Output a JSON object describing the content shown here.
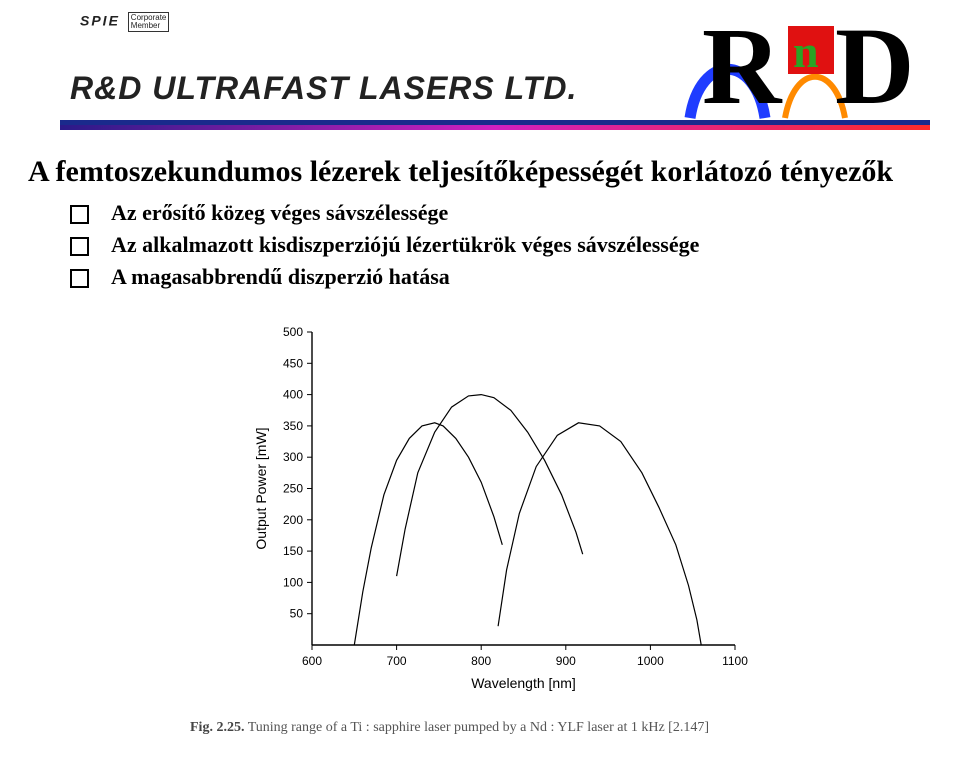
{
  "header": {
    "spie_label": "SPIE",
    "spie_box_line1": "Corporate",
    "spie_box_line2": "Member",
    "company_name": "R&D ULTRAFAST LASERS LTD.",
    "logo": {
      "letters": [
        "R",
        "n",
        "D"
      ],
      "r_color": "#000000",
      "n_bg": "#e01111",
      "n_fg": "#2aa324",
      "d_color": "#000000",
      "curve1_color": "#1f3cff",
      "curve2_color": "#ff8a00"
    },
    "divider": {
      "top_color": "#1a2a8c",
      "gradient_from": "#2a1a88",
      "gradient_mid": "#d020c0",
      "gradient_to": "#ff2a2a"
    }
  },
  "title": "A femtoszekundumos lézerek teljesítőképességét korlátozó tényezők",
  "bullets": [
    "Az erősítő közeg véges sávszélessége",
    "Az alkalmazott kisdiszperziójú lézertükrök véges sávszélessége",
    "A magasabbrendű diszperzió hatása"
  ],
  "chart": {
    "type": "line",
    "ylabel": "Output  Power  [mW]",
    "xlabel": "Wavelength  [nm]",
    "label_fontsize": 14,
    "tick_fontsize": 12,
    "xlim": [
      600,
      1100
    ],
    "xtick_step": 100,
    "xticks": [
      600,
      700,
      800,
      900,
      1000,
      1100
    ],
    "ylim": [
      0,
      500
    ],
    "ytick_step": 50,
    "yticks": [
      50,
      100,
      150,
      200,
      250,
      300,
      350,
      400,
      450,
      500
    ],
    "line_color": "#000000",
    "line_width": 1.2,
    "background_color": "#ffffff",
    "axis_color": "#000000",
    "series": [
      {
        "name": "curve1",
        "points": [
          [
            650,
            0
          ],
          [
            660,
            85
          ],
          [
            670,
            155
          ],
          [
            685,
            240
          ],
          [
            700,
            295
          ],
          [
            715,
            330
          ],
          [
            730,
            350
          ],
          [
            745,
            355
          ],
          [
            755,
            350
          ],
          [
            770,
            330
          ],
          [
            785,
            300
          ],
          [
            800,
            260
          ],
          [
            815,
            205
          ],
          [
            825,
            160
          ]
        ]
      },
      {
        "name": "curve2",
        "points": [
          [
            700,
            110
          ],
          [
            710,
            185
          ],
          [
            725,
            275
          ],
          [
            745,
            340
          ],
          [
            765,
            380
          ],
          [
            785,
            398
          ],
          [
            800,
            400
          ],
          [
            815,
            395
          ],
          [
            835,
            375
          ],
          [
            855,
            340
          ],
          [
            875,
            295
          ],
          [
            895,
            240
          ],
          [
            912,
            180
          ],
          [
            920,
            145
          ]
        ]
      },
      {
        "name": "curve3",
        "points": [
          [
            820,
            30
          ],
          [
            830,
            120
          ],
          [
            845,
            210
          ],
          [
            865,
            285
          ],
          [
            890,
            335
          ],
          [
            915,
            355
          ],
          [
            940,
            350
          ],
          [
            965,
            325
          ],
          [
            990,
            275
          ],
          [
            1010,
            220
          ],
          [
            1030,
            160
          ],
          [
            1045,
            95
          ],
          [
            1055,
            40
          ],
          [
            1060,
            0
          ]
        ]
      }
    ]
  },
  "caption_prefix": "Fig. 2.25.",
  "caption_text": " Tuning range of a Ti : sapphire laser pumped by a Nd : YLF laser at 1 kHz [2.147]"
}
